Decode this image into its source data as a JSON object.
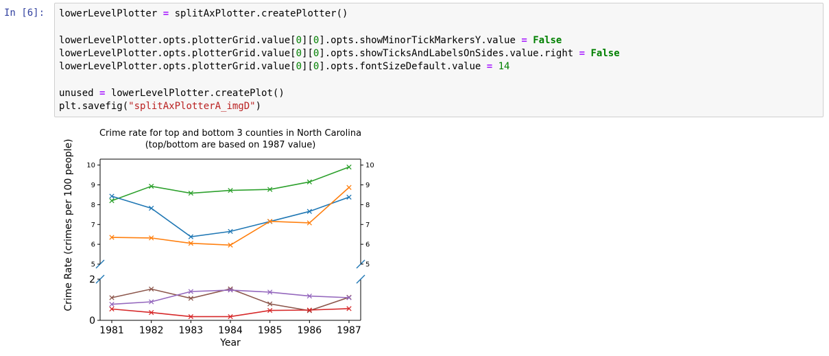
{
  "cell": {
    "prompt": "In [6]:",
    "code_lines": [
      [
        {
          "t": "lowerLevelPlotter "
        },
        {
          "t": "=",
          "c": "o"
        },
        {
          "t": " splitAxPlotter.createPlotter()"
        }
      ],
      [],
      [
        {
          "t": "lowerLevelPlotter.opts.plotterGrid.value["
        },
        {
          "t": "0",
          "c": "n"
        },
        {
          "t": "]["
        },
        {
          "t": "0",
          "c": "n"
        },
        {
          "t": "].opts.showMinorTickMarkersY.value "
        },
        {
          "t": "=",
          "c": "o"
        },
        {
          "t": " "
        },
        {
          "t": "False",
          "c": "k"
        }
      ],
      [
        {
          "t": "lowerLevelPlotter.opts.plotterGrid.value["
        },
        {
          "t": "0",
          "c": "n"
        },
        {
          "t": "]["
        },
        {
          "t": "0",
          "c": "n"
        },
        {
          "t": "].opts.showTicksAndLabelsOnSides.value.right "
        },
        {
          "t": "=",
          "c": "o"
        },
        {
          "t": " "
        },
        {
          "t": "False",
          "c": "k"
        }
      ],
      [
        {
          "t": "lowerLevelPlotter.opts.plotterGrid.value["
        },
        {
          "t": "0",
          "c": "n"
        },
        {
          "t": "]["
        },
        {
          "t": "0",
          "c": "n"
        },
        {
          "t": "].opts.fontSizeDefault.value "
        },
        {
          "t": "=",
          "c": "o"
        },
        {
          "t": " "
        },
        {
          "t": "14",
          "c": "n"
        }
      ],
      [],
      [
        {
          "t": "unused "
        },
        {
          "t": "=",
          "c": "o"
        },
        {
          "t": " lowerLevelPlotter.createPlot()"
        }
      ],
      [
        {
          "t": "plt.savefig("
        },
        {
          "t": "\"splitAxPlotterA_imgD\"",
          "c": "s"
        },
        {
          "t": ")"
        }
      ]
    ]
  },
  "chart_data": {
    "type": "line",
    "title": "Crime rate for top and bottom 3 counties in North Carolina",
    "subtitle": "(top/bottom are based on 1987 value)",
    "xlabel": "Year",
    "ylabel": "Crime Rate (crimes per 100 people)",
    "x": [
      1981,
      1982,
      1983,
      1984,
      1985,
      1986,
      1987
    ],
    "x_tick_labels": [
      "1981",
      "1982",
      "1983",
      "1984",
      "1985",
      "1986",
      "1987"
    ],
    "split_axis": {
      "upper": {
        "ylim": [
          5,
          10.3
        ],
        "ticks": [
          "5",
          "6",
          "7",
          "8",
          "9",
          "10"
        ],
        "right_ticks": true
      },
      "lower": {
        "ylim": [
          0,
          2
        ],
        "ticks": [
          "0",
          "2"
        ],
        "right_ticks": false
      }
    },
    "grid": false,
    "legend": "none",
    "marker": "x",
    "series": [
      {
        "panel": "upper",
        "color": "#2ca02c",
        "values": [
          8.2,
          8.93,
          8.58,
          8.72,
          8.77,
          9.15,
          9.9
        ]
      },
      {
        "panel": "upper",
        "color": "#1f77b4",
        "values": [
          8.43,
          7.82,
          6.38,
          6.65,
          7.15,
          7.66,
          8.38
        ]
      },
      {
        "panel": "upper",
        "color": "#ff7f0e",
        "values": [
          6.35,
          6.32,
          6.05,
          5.96,
          7.16,
          7.08,
          8.87
        ]
      },
      {
        "panel": "lower",
        "color": "#8c564b",
        "values": [
          1.1,
          1.52,
          1.07,
          1.53,
          0.8,
          0.47,
          1.12
        ]
      },
      {
        "panel": "lower",
        "color": "#9467bd",
        "values": [
          0.78,
          0.9,
          1.4,
          1.47,
          1.37,
          1.18,
          1.1
        ]
      },
      {
        "panel": "lower",
        "color": "#d62728",
        "values": [
          0.55,
          0.38,
          0.18,
          0.18,
          0.48,
          0.5,
          0.57
        ]
      }
    ]
  }
}
